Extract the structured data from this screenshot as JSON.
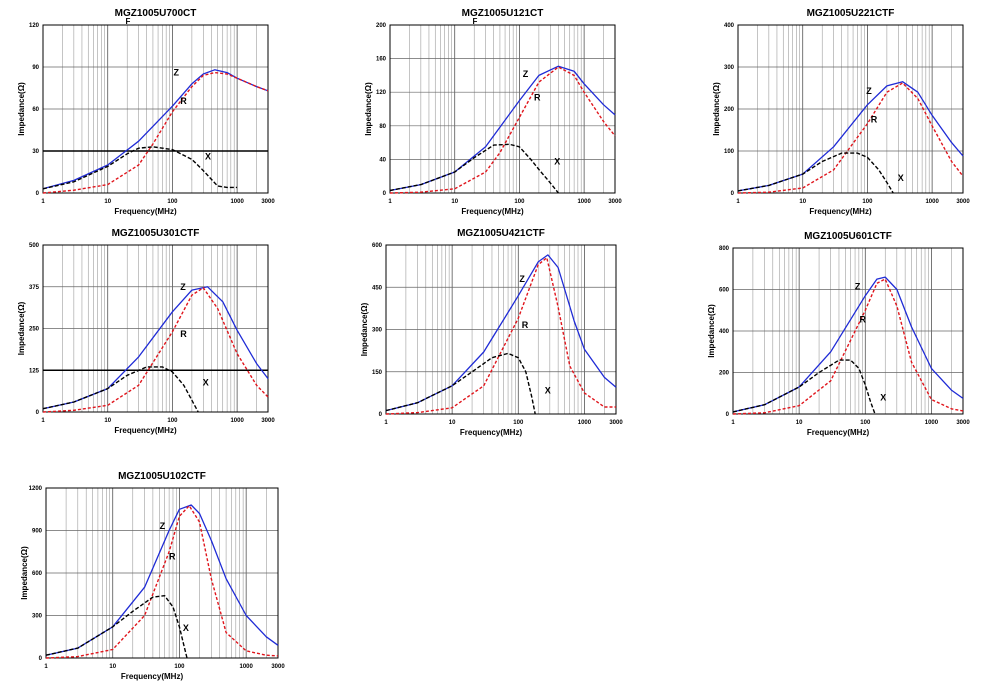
{
  "colors": {
    "Z": "#1f2bd6",
    "R": "#e0151c",
    "X": "#000000",
    "grid": "#8a8a8a",
    "frame": "#000000"
  },
  "chart_data": [
    {
      "type": "line",
      "title": "MGZ1005U700CT",
      "title_note": "F",
      "xlabel": "Frequency(MHz)",
      "ylabel": "Impedance(Ω)",
      "xscale": "log",
      "xlim": [
        1,
        3000
      ],
      "ylim": [
        0,
        120
      ],
      "xticks": [
        "1",
        "10",
        "100",
        "1000",
        "3000"
      ],
      "yticks": [
        "0",
        "30",
        "60",
        "90",
        "120"
      ],
      "hline": 30,
      "series": [
        {
          "name": "Z",
          "x": [
            1,
            3,
            10,
            30,
            100,
            200,
            300,
            450,
            700,
            1000,
            2000,
            3000
          ],
          "y": [
            3,
            9,
            20,
            37,
            62,
            78,
            85,
            88,
            86,
            82,
            76,
            73
          ]
        },
        {
          "name": "R",
          "x": [
            1,
            3,
            10,
            30,
            50,
            100,
            200,
            300,
            450,
            700,
            1000,
            2000,
            3000
          ],
          "y": [
            0,
            2,
            6,
            20,
            35,
            58,
            76,
            84,
            86,
            85,
            82,
            76,
            73
          ]
        },
        {
          "name": "X",
          "x": [
            1,
            3,
            10,
            20,
            30,
            50,
            100,
            200,
            300,
            500,
            700,
            1000
          ],
          "y": [
            3,
            8,
            19,
            28,
            32,
            33,
            31,
            24,
            16,
            5,
            4,
            4
          ]
        }
      ]
    },
    {
      "type": "line",
      "title": "MGZ1005U121CT",
      "title_note": "F",
      "xlabel": "Frequency(MHz)",
      "ylabel": "Impedance(Ω)",
      "xscale": "log",
      "xlim": [
        1,
        3000
      ],
      "ylim": [
        0,
        200
      ],
      "xticks": [
        "1",
        "10",
        "100",
        "1000",
        "3000"
      ],
      "yticks": [
        "0",
        "40",
        "80",
        "120",
        "160",
        "200"
      ],
      "series": [
        {
          "name": "Z",
          "x": [
            1,
            3,
            10,
            30,
            100,
            200,
            400,
            700,
            1000,
            2000,
            3000
          ],
          "y": [
            3,
            10,
            25,
            55,
            110,
            140,
            151,
            145,
            130,
            105,
            93
          ]
        },
        {
          "name": "R",
          "x": [
            1,
            3,
            10,
            30,
            50,
            100,
            200,
            400,
            700,
            1000,
            2000,
            3000
          ],
          "y": [
            0,
            1,
            5,
            25,
            48,
            90,
            132,
            150,
            140,
            120,
            85,
            68
          ]
        },
        {
          "name": "X",
          "x": [
            1,
            3,
            10,
            20,
            40,
            70,
            100,
            150,
            200,
            300,
            400
          ],
          "y": [
            3,
            10,
            25,
            42,
            57,
            58,
            55,
            40,
            28,
            12,
            0
          ]
        }
      ]
    },
    {
      "type": "line",
      "title": "MGZ1005U221CTF",
      "xlabel": "Frequency(MHz)",
      "ylabel": "Impedance(Ω)",
      "xscale": "log",
      "xlim": [
        1,
        3000
      ],
      "ylim": [
        0,
        400
      ],
      "xticks": [
        "1",
        "10",
        "100",
        "1000",
        "3000"
      ],
      "yticks": [
        "0",
        "100",
        "200",
        "300",
        "400"
      ],
      "series": [
        {
          "name": "Z",
          "x": [
            1,
            3,
            10,
            30,
            100,
            200,
            350,
            600,
            1000,
            2000,
            3000
          ],
          "y": [
            5,
            18,
            45,
            110,
            210,
            255,
            265,
            240,
            185,
            120,
            88
          ]
        },
        {
          "name": "R",
          "x": [
            1,
            3,
            10,
            30,
            100,
            200,
            350,
            600,
            1000,
            2000,
            3000
          ],
          "y": [
            0,
            2,
            12,
            55,
            165,
            240,
            262,
            225,
            160,
            75,
            40
          ]
        },
        {
          "name": "X",
          "x": [
            1,
            3,
            10,
            20,
            40,
            70,
            100,
            150,
            200,
            250
          ],
          "y": [
            5,
            18,
            45,
            75,
            95,
            95,
            85,
            55,
            25,
            0
          ]
        }
      ]
    },
    {
      "type": "line",
      "title": "MGZ1005U301CTF",
      "xlabel": "Frequency(MHz)",
      "ylabel": "Impedance(Ω)",
      "xscale": "log",
      "xlim": [
        1,
        3000
      ],
      "ylim": [
        0,
        500
      ],
      "xticks": [
        "1",
        "10",
        "100",
        "1000",
        "3000"
      ],
      "yticks": [
        "0",
        "125",
        "250",
        "375",
        "500"
      ],
      "hline": 125,
      "series": [
        {
          "name": "Z",
          "x": [
            1,
            3,
            10,
            30,
            100,
            200,
            350,
            600,
            1000,
            2000,
            3000
          ],
          "y": [
            10,
            30,
            70,
            165,
            300,
            365,
            375,
            330,
            245,
            145,
            100
          ]
        },
        {
          "name": "R",
          "x": [
            1,
            3,
            10,
            30,
            100,
            200,
            300,
            500,
            1000,
            2000,
            3000
          ],
          "y": [
            0,
            5,
            20,
            80,
            240,
            350,
            372,
            310,
            175,
            80,
            45
          ]
        },
        {
          "name": "X",
          "x": [
            1,
            3,
            10,
            20,
            40,
            70,
            100,
            150,
            200,
            250
          ],
          "y": [
            10,
            30,
            70,
            110,
            135,
            135,
            120,
            80,
            35,
            0
          ]
        }
      ]
    },
    {
      "type": "line",
      "title": "MGZ1005U421CTF",
      "xlabel": "Frequency(MHz)",
      "ylabel": "Impedance(Ω)",
      "xscale": "log",
      "xlim": [
        1,
        3000
      ],
      "ylim": [
        0,
        600
      ],
      "xticks": [
        "1",
        "10",
        "100",
        "1000",
        "3000"
      ],
      "yticks": [
        "0",
        "150",
        "300",
        "450",
        "600"
      ],
      "series": [
        {
          "name": "Z",
          "x": [
            1,
            3,
            10,
            30,
            100,
            200,
            280,
            400,
            700,
            1000,
            2000,
            3000
          ],
          "y": [
            12,
            40,
            100,
            220,
            420,
            540,
            565,
            520,
            330,
            230,
            130,
            95
          ]
        },
        {
          "name": "R",
          "x": [
            1,
            3,
            10,
            30,
            100,
            200,
            270,
            400,
            600,
            1000,
            2000,
            3000
          ],
          "y": [
            0,
            5,
            22,
            100,
            340,
            530,
            555,
            380,
            170,
            75,
            25,
            25
          ]
        },
        {
          "name": "X",
          "x": [
            1,
            3,
            10,
            20,
            40,
            70,
            100,
            130,
            160,
            180
          ],
          "y": [
            12,
            40,
            100,
            150,
            200,
            215,
            200,
            150,
            60,
            0
          ]
        }
      ]
    },
    {
      "type": "line",
      "title": "MGZ1005U601CTF",
      "xlabel": "Frequency(MHz)",
      "ylabel": "Impedance(Ω)",
      "xscale": "log",
      "xlim": [
        1,
        3000
      ],
      "ylim": [
        0,
        800
      ],
      "xticks": [
        "1",
        "10",
        "100",
        "1000",
        "3000"
      ],
      "yticks": [
        "0",
        "200",
        "400",
        "600",
        "800"
      ],
      "series": [
        {
          "name": "Z",
          "x": [
            1,
            3,
            10,
            30,
            100,
            150,
            200,
            300,
            500,
            1000,
            2000,
            3000
          ],
          "y": [
            10,
            45,
            130,
            300,
            570,
            650,
            660,
            600,
            420,
            220,
            115,
            75
          ]
        },
        {
          "name": "R",
          "x": [
            1,
            3,
            10,
            30,
            100,
            150,
            200,
            300,
            500,
            1000,
            2000,
            3000
          ],
          "y": [
            0,
            6,
            40,
            160,
            500,
            630,
            650,
            520,
            250,
            70,
            25,
            15
          ]
        },
        {
          "name": "X",
          "x": [
            1,
            3,
            10,
            20,
            40,
            60,
            80,
            100,
            120,
            140
          ],
          "y": [
            10,
            45,
            130,
            200,
            260,
            260,
            220,
            140,
            60,
            0
          ]
        }
      ]
    },
    {
      "type": "line",
      "title": "MGZ1005U102CTF",
      "xlabel": "Frequency(MHz)",
      "ylabel": "Impedance(Ω)",
      "xscale": "log",
      "xlim": [
        1,
        3000
      ],
      "ylim": [
        0,
        1200
      ],
      "xticks": [
        "1",
        "10",
        "100",
        "1000",
        "3000"
      ],
      "yticks": [
        "0",
        "300",
        "600",
        "900",
        "1200"
      ],
      "series": [
        {
          "name": "Z",
          "x": [
            1,
            3,
            10,
            30,
            70,
            100,
            150,
            200,
            300,
            500,
            1000,
            2000,
            3000
          ],
          "y": [
            20,
            70,
            220,
            500,
            900,
            1050,
            1080,
            1020,
            830,
            560,
            300,
            150,
            90
          ]
        },
        {
          "name": "R",
          "x": [
            1,
            3,
            10,
            30,
            70,
            100,
            140,
            200,
            300,
            500,
            1000,
            2000,
            3000
          ],
          "y": [
            0,
            10,
            60,
            300,
            750,
            1000,
            1075,
            960,
            560,
            180,
            50,
            20,
            15
          ]
        },
        {
          "name": "X",
          "x": [
            1,
            3,
            10,
            20,
            40,
            60,
            80,
            100,
            115,
            130
          ],
          "y": [
            20,
            70,
            220,
            330,
            430,
            440,
            360,
            220,
            100,
            0
          ]
        }
      ]
    }
  ]
}
